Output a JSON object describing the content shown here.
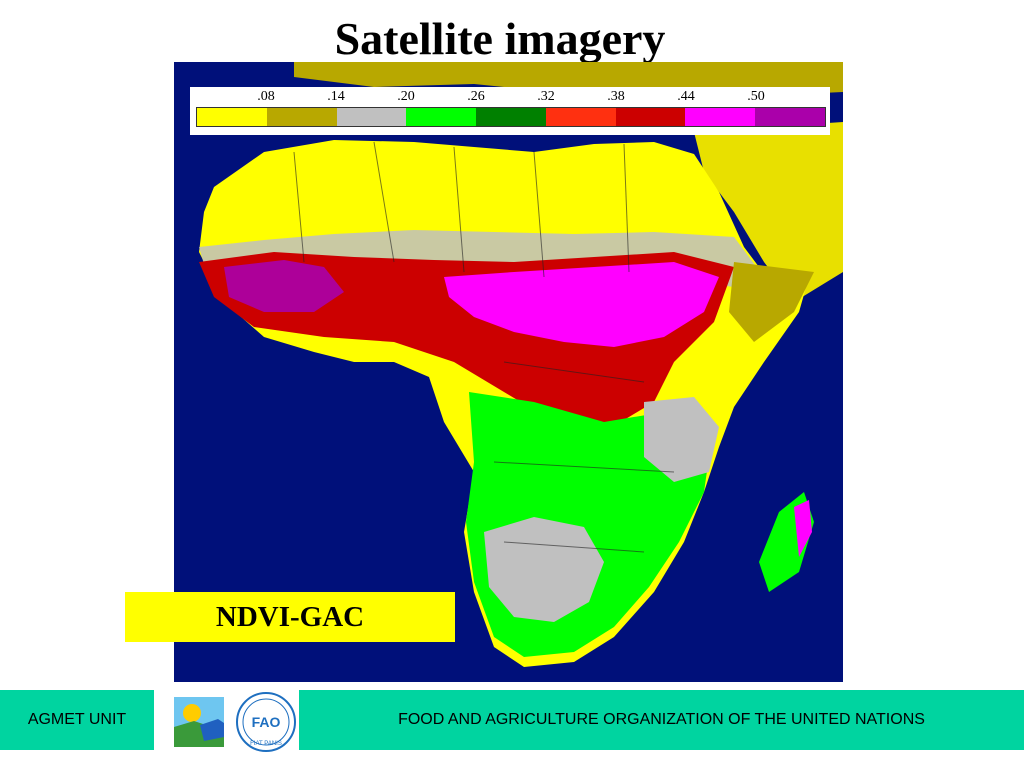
{
  "slide": {
    "title": "Satellite imagery",
    "map_caption": "NDVI-GAC"
  },
  "legend": {
    "tick_labels": [
      ".08",
      ".14",
      ".20",
      ".26",
      ".32",
      ".38",
      ".44",
      ".50"
    ],
    "colors": [
      "#ffff00",
      "#b8a800",
      "#c0c0c0",
      "#00ff00",
      "#008000",
      "#ff3010",
      "#cc0000",
      "#ff00ff",
      "#aa00aa"
    ]
  },
  "footer": {
    "unit": "AGMET UNIT",
    "organization": "FOOD AND AGRICULTURE ORGANIZATION OF THE UNITED NATIONS",
    "fao_logo_text": "FAO",
    "fao_motto": "FIAT PANIS"
  },
  "colors": {
    "ocean": "#00107a",
    "footer_band": "#00d4a0",
    "caption_bg": "#ffff00"
  }
}
